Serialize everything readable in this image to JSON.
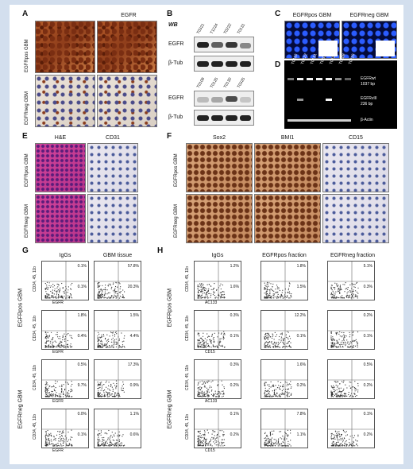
{
  "panels": {
    "A": {
      "letter": "A",
      "title": "EGFR",
      "row1": "EGFRpos GBM",
      "row2": "EGFRneg GBM"
    },
    "B": {
      "letter": "B",
      "wb": "WB",
      "top_lanes": [
        "T0321",
        "T1224",
        "T0222",
        "T0131"
      ],
      "bottom_lanes": [
        "T0109",
        "T0125",
        "T0130",
        "T0325"
      ],
      "egfr": "EGFR",
      "tub": "β-Tub"
    },
    "C": {
      "letter": "C",
      "left": "EGFRpos GBM",
      "right": "EGFRneg GBM"
    },
    "D": {
      "letter": "D",
      "lanes": [
        "T0110",
        "T0122",
        "T0131",
        "T0207",
        "T0221",
        "T0108",
        "T0225"
      ],
      "band1": "EGFRwt",
      "band1_size": "1037 bp",
      "band2": "EGFRvIII",
      "band2_size": "236 bp",
      "actin": "β-Actin"
    },
    "E": {
      "letter": "E",
      "he": "H&E",
      "cd31": "CD31",
      "row1": "EGFRpos GBM",
      "row2": "EGFRneg GBM"
    },
    "F": {
      "letter": "F",
      "c1": "Sox2",
      "c2": "BMI1",
      "c3": "CD15",
      "row1": "EGFRpos GBM",
      "row2": "EGFRneg GBM"
    },
    "G": {
      "letter": "G",
      "c1": "IgGs",
      "c2": "GBM tissue",
      "pos": "EGFRpos GBM",
      "neg": "EGFRneg GBM",
      "yaxis": "CD34, 45, 11b",
      "xaxis": "EGFR",
      "rows": [
        {
          "igg": [
            "0.1%",
            "0.1%"
          ],
          "tissue": [
            "57.8%",
            "20.3%"
          ]
        },
        {
          "igg": [
            "1.8%",
            "0.4%"
          ],
          "tissue": [
            "1.5%",
            "4.4%"
          ]
        },
        {
          "igg": [
            "0.5%",
            "9.7%"
          ],
          "tissue": [
            "17.3%",
            "0.9%"
          ]
        },
        {
          "igg": [
            "0.0%",
            "0.1%"
          ],
          "tissue": [
            "1.1%",
            "0.6%"
          ]
        }
      ]
    },
    "H": {
      "letter": "H",
      "c1": "IgGs",
      "c2": "EGFRpos fraction",
      "c3": "EGFRneg fraction",
      "pos": "EGFRpos GBM",
      "neg": "EGFRneg GBM",
      "yaxis": "CD34, 45, 11b",
      "xaxes": [
        "AC133",
        "CD15",
        "AC133",
        "CD15"
      ],
      "rows": [
        {
          "a": [
            "1.2%",
            "1.6%"
          ],
          "b": [
            "1.8%",
            "1.5%"
          ],
          "c": [
            "5.1%",
            "0.3%"
          ]
        },
        {
          "a": [
            "0.3%",
            "0.1%"
          ],
          "b": [
            "12.2%",
            "0.1%"
          ],
          "c": [
            "0.2%",
            "0.1%"
          ]
        },
        {
          "a": [
            "0.3%",
            "0.2%"
          ],
          "b": [
            "1.6%",
            "0.2%"
          ],
          "c": [
            "0.5%",
            "0.2%"
          ]
        },
        {
          "a": [
            "0.1%",
            "0.2%"
          ],
          "b": [
            "7.8%",
            "1.1%"
          ],
          "c": [
            "0.1%",
            "0.2%"
          ]
        }
      ]
    }
  }
}
